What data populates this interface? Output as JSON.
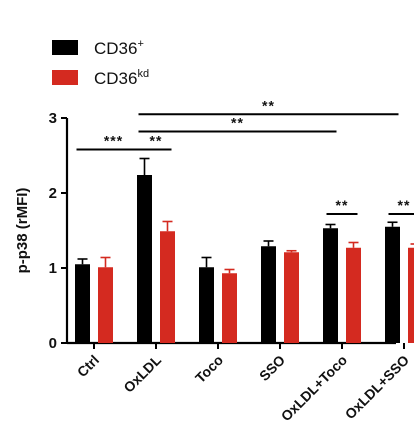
{
  "chart_data": {
    "type": "bar",
    "title": "",
    "xlabel": "",
    "ylabel": "p-p38 (rMFI)",
    "ylim": [
      0,
      3
    ],
    "yticks": [
      "0",
      "1",
      "2",
      "3"
    ],
    "grid": false,
    "legend_position": "top-left",
    "categories": [
      "Ctrl",
      "OxLDL",
      "Toco",
      "SSO",
      "OxLDL+Toco",
      "OxLDL+SSO"
    ],
    "series": [
      {
        "name": "CD36",
        "name_sup": "+",
        "color": "#000000",
        "values": [
          1.05,
          2.24,
          1.01,
          1.29,
          1.53,
          1.55
        ],
        "errors": [
          0.07,
          0.22,
          0.13,
          0.07,
          0.05,
          0.06
        ]
      },
      {
        "name": "CD36",
        "name_sup": "kd",
        "color": "#d42a20",
        "values": [
          1.01,
          1.49,
          0.93,
          1.21,
          1.27,
          1.27
        ],
        "errors": [
          0.13,
          0.13,
          0.05,
          0.02,
          0.07,
          0.05
        ]
      }
    ],
    "significance": [
      {
        "from": 0,
        "to": 1,
        "label": "***",
        "y": 2.58
      },
      {
        "from": 1,
        "to": 1,
        "label": "**",
        "y": 2.58,
        "within_group": true
      },
      {
        "from": 1,
        "to": 4,
        "label": "**",
        "y": 2.82
      },
      {
        "from": 1,
        "to": 5,
        "label": "**",
        "y": 3.05
      },
      {
        "from": 4,
        "to": 4,
        "label": "**",
        "y": 1.72,
        "within_group": true
      },
      {
        "from": 5,
        "to": 5,
        "label": "**",
        "y": 1.72,
        "within_group": true
      }
    ]
  }
}
